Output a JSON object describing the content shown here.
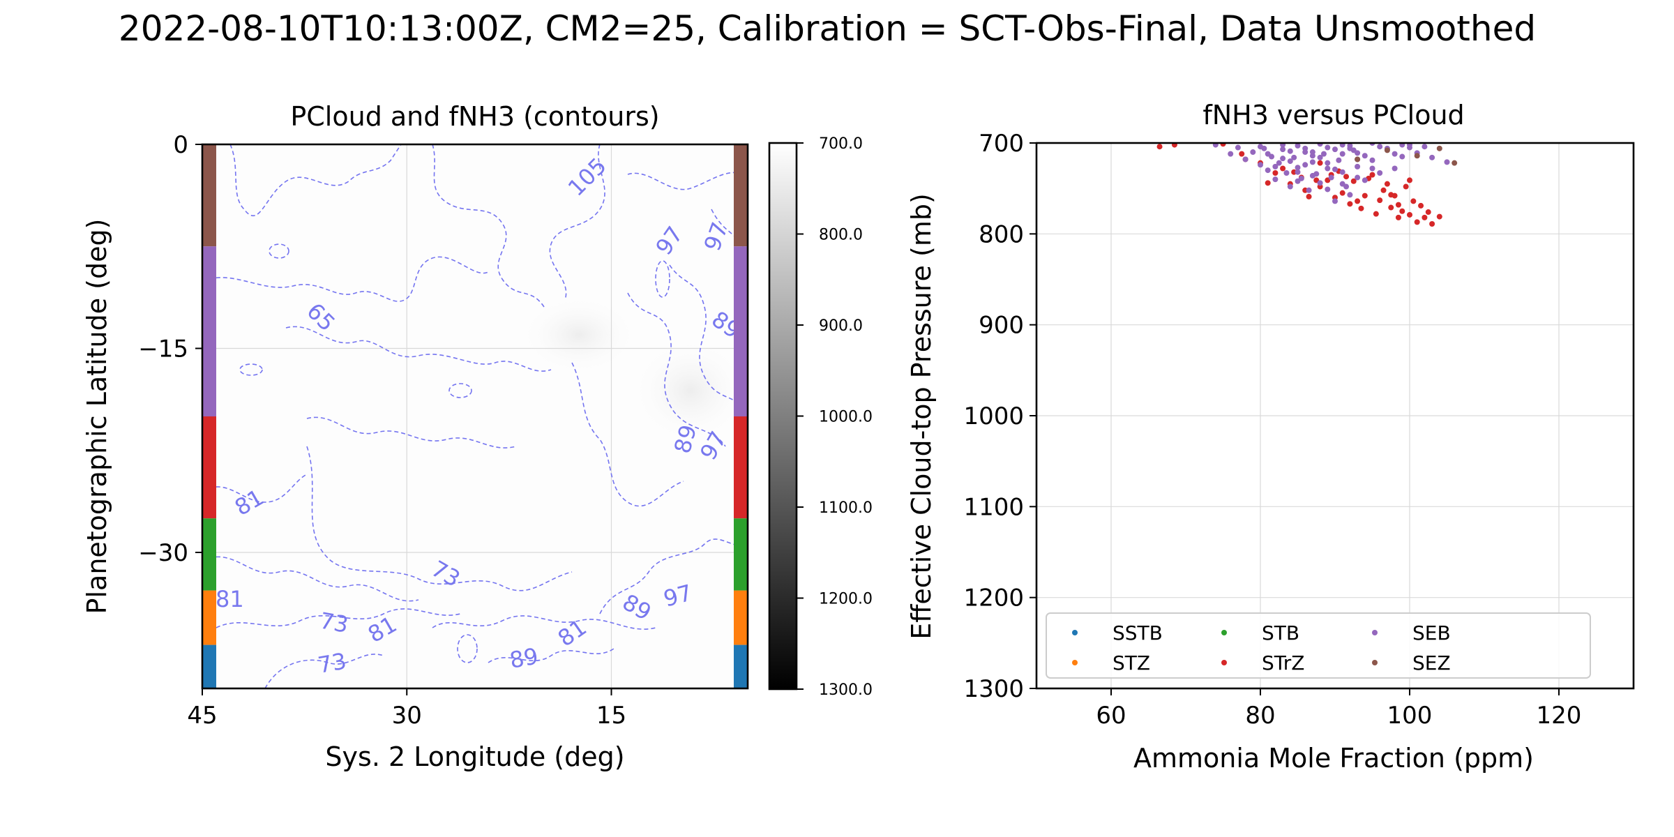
{
  "figure": {
    "title": "2022-08-10T10:13:00Z, CM2=25, Calibration = SCT-Obs-Final, Data Unsmoothed"
  },
  "chart_data": [
    {
      "type": "heatmap",
      "title": "PCloud and fNH3 (contours)",
      "xlabel": "Sys. 2 Longitude (deg)",
      "ylabel": "Planetographic Latitude (deg)",
      "xlim": [
        45,
        5
      ],
      "ylim": [
        -40,
        0
      ],
      "xticks": [
        "45",
        "30",
        "15"
      ],
      "xtick_values": [
        45,
        30,
        15
      ],
      "yticks": [
        "0",
        "−15",
        "−30"
      ],
      "ytick_values": [
        0,
        -15,
        -30
      ],
      "grid": true,
      "colormap": "gray",
      "colorbar": {
        "range": [
          700,
          1300
        ],
        "ticks": [
          "700.0",
          "800.0",
          "900.0",
          "1000.0",
          "1100.0",
          "1200.0",
          "1300.0"
        ],
        "tick_values": [
          700,
          800,
          900,
          1000,
          1100,
          1200,
          1300
        ]
      },
      "contour_labels": [
        "105",
        "97",
        "97",
        "89",
        "65",
        "89",
        "97",
        "81",
        "81",
        "73",
        "73",
        "81",
        "73",
        "89",
        "97",
        "81",
        "89"
      ],
      "band_strips": [
        {
          "band": "SEZ",
          "lat_range": [
            0,
            -7.5
          ],
          "color": "#8c564b"
        },
        {
          "band": "SEB",
          "lat_range": [
            -7.5,
            -20
          ],
          "color": "#9467bd"
        },
        {
          "band": "STrZ",
          "lat_range": [
            -20,
            -27.5
          ],
          "color": "#d62728"
        },
        {
          "band": "STB",
          "lat_range": [
            -27.5,
            -32.8
          ],
          "color": "#2ca02c"
        },
        {
          "band": "STZ",
          "lat_range": [
            -32.8,
            -36.8
          ],
          "color": "#ff7f0e"
        },
        {
          "band": "SSTB",
          "lat_range": [
            -36.8,
            -40
          ],
          "color": "#1f77b4"
        }
      ]
    },
    {
      "type": "scatter",
      "title": "fNH3 versus PCloud",
      "xlabel": "Ammonia Mole Fraction (ppm)",
      "ylabel": "Effective Cloud-top Pressure (mb)",
      "xlim": [
        50,
        130
      ],
      "ylim": [
        1300,
        700
      ],
      "xticks": [
        "60",
        "80",
        "100",
        "120"
      ],
      "xtick_values": [
        60,
        80,
        100,
        120
      ],
      "yticks": [
        "700",
        "800",
        "900",
        "1000",
        "1100",
        "1200",
        "1300"
      ],
      "ytick_values": [
        700,
        800,
        900,
        1000,
        1100,
        1200,
        1300
      ],
      "grid": true,
      "legend": {
        "placement": "lower-center",
        "columns": 4
      },
      "series": [
        {
          "name": "SSTB",
          "color": "#1f77b4",
          "x": [],
          "y": []
        },
        {
          "name": "STZ",
          "color": "#ff7f0e",
          "x": [],
          "y": []
        },
        {
          "name": "STB",
          "color": "#2ca02c",
          "x": [],
          "y": []
        },
        {
          "name": "STrZ",
          "color": "#d62728",
          "x": [
            66.5,
            68.5,
            75,
            77.5,
            80,
            82,
            83,
            84,
            85.5,
            86,
            87.5,
            88,
            89.5,
            90,
            91,
            92,
            92.5,
            93.5,
            94,
            95,
            95.5,
            96,
            97,
            97.5,
            98,
            98.5,
            99,
            99.5,
            100,
            100.5,
            101,
            101.5,
            102,
            102.5,
            103,
            104,
            78,
            81,
            84.5,
            86.5,
            89,
            91.5,
            93,
            96.5,
            98.5,
            100,
            88,
            90.5,
            94.5,
            97.5
          ],
          "y": [
            704,
            702,
            701,
            712,
            722,
            733,
            728,
            745,
            738,
            752,
            741,
            748,
            735,
            760,
            755,
            767,
            742,
            772,
            758,
            735,
            778,
            763,
            745,
            771,
            758,
            782,
            775,
            748,
            779,
            764,
            787,
            769,
            782,
            776,
            789,
            781,
            718,
            744,
            732,
            759,
            741,
            737,
            764,
            752,
            768,
            741,
            722,
            731,
            739,
            757
          ]
        },
        {
          "name": "SEB",
          "color": "#9467bd",
          "x": [
            74,
            76,
            77,
            78,
            79,
            80,
            80.5,
            81,
            81.5,
            82,
            82.5,
            83,
            83.5,
            84,
            84.5,
            85,
            85.5,
            86,
            86.5,
            87,
            87.5,
            88,
            88.5,
            89,
            89.5,
            90,
            90.5,
            91,
            91.5,
            92,
            92.5,
            93,
            94,
            95,
            96,
            97,
            98,
            99,
            100,
            101,
            102,
            103,
            105,
            80,
            81,
            83,
            84,
            85,
            86,
            87,
            88,
            89,
            90,
            91,
            92,
            93,
            82,
            84,
            86,
            88,
            90,
            92,
            94,
            96,
            98,
            100,
            85,
            87,
            89,
            91,
            93,
            95,
            83,
            85,
            87,
            89,
            91,
            93,
            95,
            97,
            99
          ],
          "y": [
            702,
            712,
            705,
            718,
            710,
            724,
            706,
            730,
            715,
            740,
            722,
            707,
            733,
            748,
            716,
            727,
            739,
            710,
            752,
            721,
            734,
            744,
            712,
            728,
            738,
            764,
            719,
            732,
            748,
            757,
            708,
            726,
            741,
            719,
            733,
            706,
            728,
            715,
            702,
            711,
            704,
            716,
            721,
            704,
            712,
            702,
            720,
            732,
            706,
            714,
            701,
            722,
            707,
            712,
            703,
            718,
            726,
            709,
            724,
            716,
            729,
            706,
            714,
            704,
            712,
            705,
            742,
            736,
            751,
            745,
            738,
            728,
            717,
            703,
            710,
            705,
            702,
            711,
            700,
            707,
            702
          ]
        },
        {
          "name": "SEZ",
          "color": "#8c564b",
          "x": [
            93,
            97,
            101,
            104,
            106
          ],
          "y": [
            718,
            708,
            714,
            706,
            722
          ]
        }
      ]
    }
  ]
}
